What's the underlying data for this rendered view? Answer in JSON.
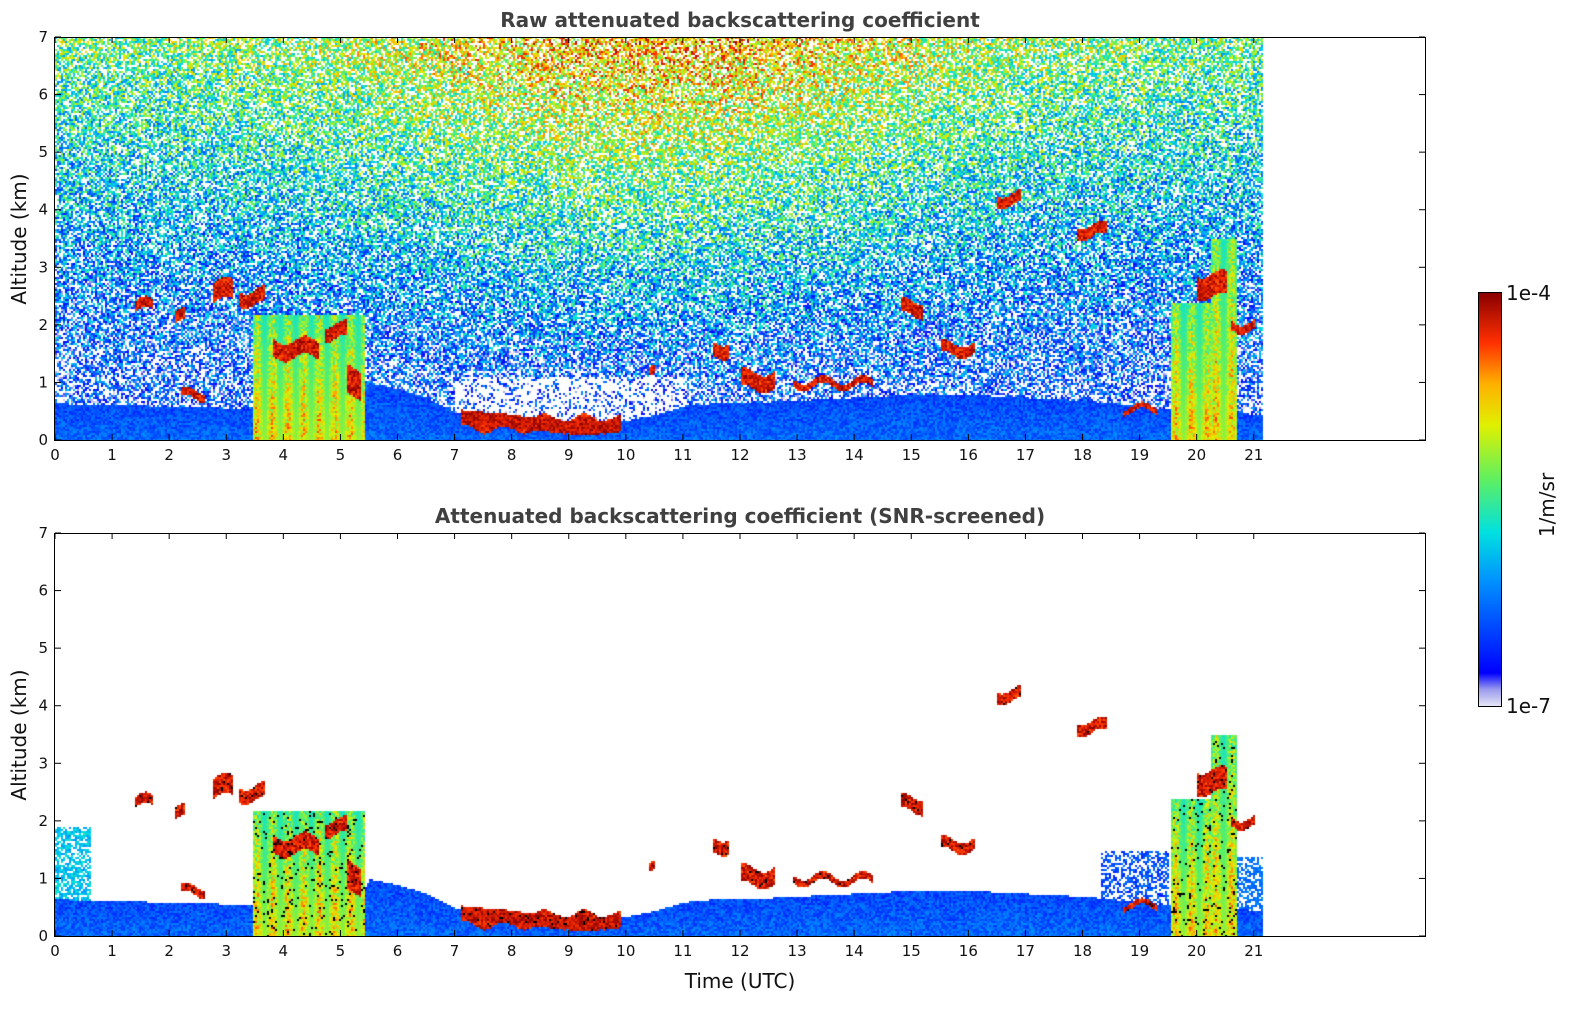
{
  "chart_data": [
    {
      "type": "heatmap",
      "title": "Raw attenuated backscattering coefficient",
      "xlabel": "",
      "ylabel": "Altitude (km)",
      "xlim": [
        0,
        24
      ],
      "ylim": [
        0,
        7
      ],
      "x_ticks": [
        0,
        1,
        2,
        3,
        4,
        5,
        6,
        7,
        8,
        9,
        10,
        11,
        12,
        13,
        14,
        15,
        16,
        17,
        18,
        19,
        20,
        21
      ],
      "y_ticks": [
        0,
        1,
        2,
        3,
        4,
        5,
        6,
        7
      ],
      "data_extent_x": [
        0,
        21.15
      ],
      "colormap": "jet",
      "color_scale": "log",
      "screened": false
    },
    {
      "type": "heatmap",
      "title": "Attenuated backscattering coefficient (SNR-screened)",
      "xlabel": "Time (UTC)",
      "ylabel": "Altitude (km)",
      "xlim": [
        0,
        24
      ],
      "ylim": [
        0,
        7
      ],
      "x_ticks": [
        0,
        1,
        2,
        3,
        4,
        5,
        6,
        7,
        8,
        9,
        10,
        11,
        12,
        13,
        14,
        15,
        16,
        17,
        18,
        19,
        20,
        21
      ],
      "y_ticks": [
        0,
        1,
        2,
        3,
        4,
        5,
        6,
        7
      ],
      "data_extent_x": [
        0,
        21.15
      ],
      "colormap": "jet",
      "color_scale": "log",
      "screened": true
    }
  ],
  "colorbar": {
    "max_label": "1e-4",
    "min_label": "1e-7",
    "unit": "1/m/sr",
    "range": [
      1e-07,
      0.0001
    ],
    "scale": "log"
  },
  "features": {
    "boundary_layer_top_km": [
      [
        0,
        0.65
      ],
      [
        1,
        0.62
      ],
      [
        2,
        0.6
      ],
      [
        2.6,
        0.6
      ],
      [
        3.1,
        0.55
      ],
      [
        3.5,
        0.55
      ],
      [
        4,
        0.6
      ],
      [
        5.3,
        0.6
      ],
      [
        5.5,
        1.0
      ],
      [
        6,
        0.9
      ],
      [
        6.5,
        0.75
      ],
      [
        7,
        0.5
      ],
      [
        7.5,
        0.45
      ],
      [
        8,
        0.4
      ],
      [
        8.5,
        0.35
      ],
      [
        9,
        0.3
      ],
      [
        9.5,
        0.3
      ],
      [
        10,
        0.35
      ],
      [
        10.5,
        0.45
      ],
      [
        11,
        0.6
      ],
      [
        11.5,
        0.65
      ],
      [
        12,
        0.65
      ],
      [
        13,
        0.7
      ],
      [
        14,
        0.75
      ],
      [
        15,
        0.8
      ],
      [
        16,
        0.8
      ],
      [
        17,
        0.75
      ],
      [
        18,
        0.7
      ],
      [
        19,
        0.6
      ],
      [
        19.5,
        0.55
      ],
      [
        20,
        0.5
      ],
      [
        20.5,
        0.5
      ],
      [
        21.15,
        0.45
      ]
    ],
    "cloud_layers": [
      {
        "x0": 1.4,
        "x1": 1.7,
        "alt": 2.35,
        "thick": 0.18
      },
      {
        "x0": 2.1,
        "x1": 2.25,
        "alt": 2.15,
        "thick": 0.2
      },
      {
        "x0": 2.2,
        "x1": 2.6,
        "alt": 0.8,
        "thick": 0.15
      },
      {
        "x0": 2.75,
        "x1": 3.1,
        "alt": 2.6,
        "thick": 0.35
      },
      {
        "x0": 3.2,
        "x1": 3.65,
        "alt": 2.5,
        "thick": 0.25
      },
      {
        "x0": 3.8,
        "x1": 4.6,
        "alt": 1.6,
        "thick": 0.3
      },
      {
        "x0": 4.7,
        "x1": 5.1,
        "alt": 1.9,
        "thick": 0.25
      },
      {
        "x0": 5.1,
        "x1": 5.35,
        "alt": 1.0,
        "thick": 0.5
      },
      {
        "x0": 7.1,
        "x1": 9.9,
        "alt": 0.3,
        "thick": 0.2
      },
      {
        "x0": 10.4,
        "x1": 10.5,
        "alt": 1.25,
        "thick": 0.15
      },
      {
        "x0": 11.5,
        "x1": 11.8,
        "alt": 1.6,
        "thick": 0.25
      },
      {
        "x0": 12.0,
        "x1": 12.6,
        "alt": 1.05,
        "thick": 0.3
      },
      {
        "x0": 12.9,
        "x1": 14.3,
        "alt": 1.0,
        "thick": 0.12
      },
      {
        "x0": 14.8,
        "x1": 15.2,
        "alt": 2.3,
        "thick": 0.25
      },
      {
        "x0": 15.5,
        "x1": 16.1,
        "alt": 1.6,
        "thick": 0.2
      },
      {
        "x0": 16.5,
        "x1": 16.9,
        "alt": 4.2,
        "thick": 0.2
      },
      {
        "x0": 17.9,
        "x1": 18.4,
        "alt": 3.65,
        "thick": 0.2
      },
      {
        "x0": 18.7,
        "x1": 19.3,
        "alt": 0.55,
        "thick": 0.1
      },
      {
        "x0": 20.0,
        "x1": 20.5,
        "alt": 2.7,
        "thick": 0.4
      },
      {
        "x0": 20.6,
        "x1": 21.0,
        "alt": 2.0,
        "thick": 0.15
      }
    ],
    "precipitation_columns": [
      {
        "x0": 3.45,
        "x1": 5.4,
        "top": 2.2
      },
      {
        "x0": 19.55,
        "x1": 20.25,
        "top": 2.4
      },
      {
        "x0": 20.25,
        "x1": 20.7,
        "top": 3.5
      }
    ]
  }
}
